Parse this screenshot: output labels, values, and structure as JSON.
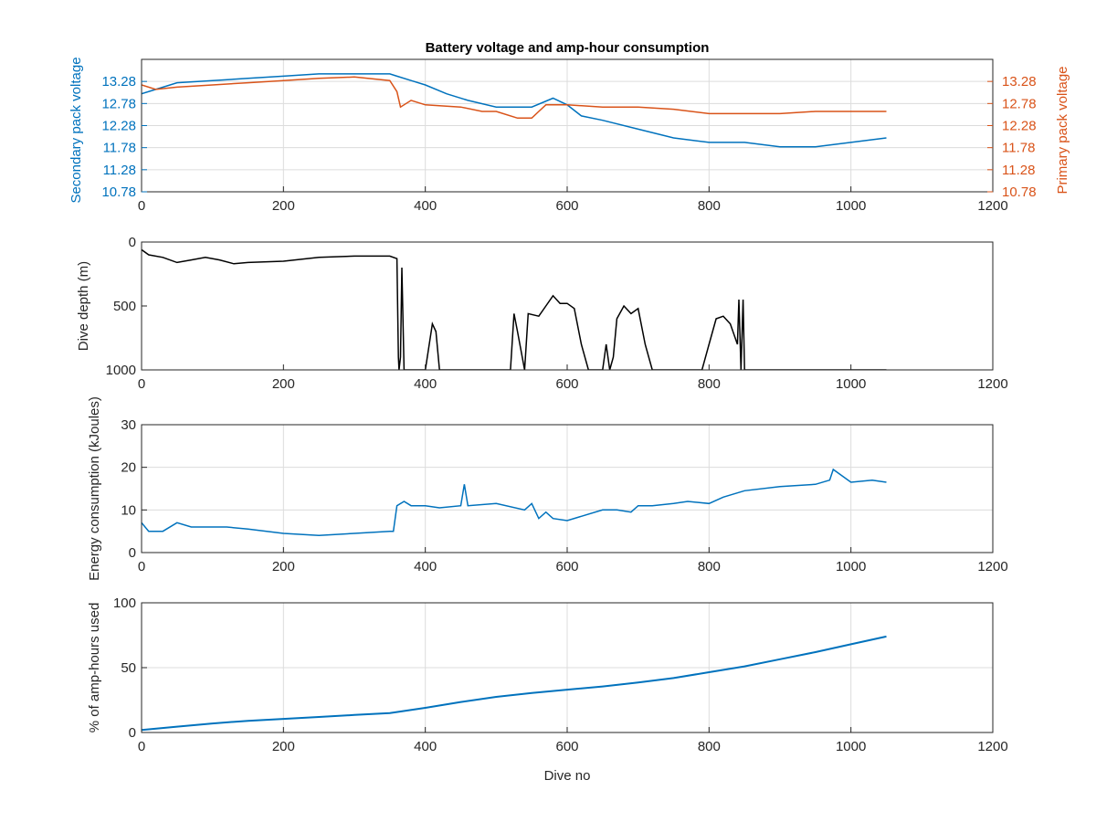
{
  "colors": {
    "secondary": "#0072BD",
    "primary": "#D95319",
    "depth": "#000000",
    "axis": "#262626",
    "grid": "#dcdcdc"
  },
  "chart_data": [
    {
      "type": "line",
      "title": "Battery voltage and amp-hour consumption",
      "xlabel": "",
      "xlim": [
        0,
        1200
      ],
      "xticks": [
        0,
        200,
        400,
        600,
        800,
        1000,
        1200
      ],
      "ylabel_left": "Secondary pack voltage",
      "ylabel_right": "Primary pack voltage",
      "ylim": [
        10.78,
        13.78
      ],
      "yticks": [
        10.78,
        11.28,
        11.78,
        12.28,
        12.78,
        13.28
      ],
      "grid": true,
      "series": [
        {
          "axis": "left",
          "x": [
            0,
            20,
            50,
            100,
            150,
            200,
            250,
            300,
            350,
            360,
            380,
            400,
            430,
            460,
            500,
            550,
            580,
            600,
            620,
            650,
            700,
            750,
            800,
            850,
            900,
            950,
            1000,
            1050
          ],
          "y": [
            13.0,
            13.1,
            13.25,
            13.3,
            13.35,
            13.4,
            13.45,
            13.45,
            13.45,
            13.4,
            13.3,
            13.2,
            13.0,
            12.85,
            12.7,
            12.7,
            12.9,
            12.75,
            12.5,
            12.4,
            12.2,
            12.0,
            11.9,
            11.9,
            11.8,
            11.8,
            11.9,
            12.0
          ]
        },
        {
          "axis": "right",
          "x": [
            0,
            20,
            50,
            100,
            150,
            200,
            250,
            300,
            350,
            360,
            365,
            380,
            400,
            450,
            480,
            500,
            530,
            550,
            560,
            570,
            600,
            650,
            700,
            750,
            800,
            850,
            900,
            950,
            1000,
            1050
          ],
          "y": [
            13.2,
            13.1,
            13.15,
            13.2,
            13.25,
            13.3,
            13.35,
            13.38,
            13.3,
            13.05,
            12.7,
            12.85,
            12.75,
            12.7,
            12.6,
            12.6,
            12.45,
            12.45,
            12.6,
            12.75,
            12.75,
            12.7,
            12.7,
            12.65,
            12.55,
            12.55,
            12.55,
            12.6,
            12.6,
            12.6
          ]
        }
      ]
    },
    {
      "type": "line",
      "xlabel": "",
      "ylabel": "Dive depth (m)",
      "xlim": [
        0,
        1200
      ],
      "xticks": [
        0,
        200,
        400,
        600,
        800,
        1000,
        1200
      ],
      "ylim": [
        0,
        1000
      ],
      "yticks": [
        0,
        500,
        1000
      ],
      "yreversed": true,
      "grid": false,
      "series": [
        {
          "x": [
            0,
            10,
            30,
            50,
            70,
            90,
            110,
            130,
            150,
            200,
            250,
            300,
            350,
            360,
            362,
            363,
            365,
            367,
            370,
            390,
            400,
            410,
            415,
            420,
            430,
            500,
            520,
            525,
            530,
            540,
            545,
            560,
            570,
            580,
            590,
            600,
            610,
            620,
            630,
            640,
            650,
            655,
            660,
            665,
            670,
            680,
            690,
            700,
            710,
            720,
            750,
            780,
            790,
            800,
            810,
            820,
            830,
            840,
            842,
            845,
            848,
            850,
            860,
            900,
            950,
            1000,
            1050
          ],
          "y": [
            60,
            100,
            120,
            160,
            140,
            120,
            140,
            170,
            160,
            150,
            120,
            110,
            110,
            130,
            900,
            1000,
            900,
            200,
            1000,
            1000,
            1000,
            640,
            700,
            1000,
            1000,
            1000,
            1000,
            560,
            700,
            1000,
            560,
            580,
            500,
            420,
            480,
            480,
            520,
            800,
            1000,
            1000,
            1000,
            800,
            1000,
            900,
            600,
            500,
            560,
            520,
            800,
            1000,
            1000,
            1000,
            1000,
            800,
            600,
            580,
            640,
            800,
            450,
            1000,
            450,
            1000,
            1000,
            1000,
            1000,
            1000,
            1000
          ]
        }
      ]
    },
    {
      "type": "line",
      "xlabel": "",
      "ylabel": "Energy consumption (kJoules)",
      "xlim": [
        0,
        1200
      ],
      "xticks": [
        0,
        200,
        400,
        600,
        800,
        1000,
        1200
      ],
      "ylim": [
        0,
        30
      ],
      "yticks": [
        0,
        10,
        20,
        30
      ],
      "grid": true,
      "series": [
        {
          "x": [
            0,
            10,
            30,
            50,
            70,
            100,
            120,
            150,
            200,
            250,
            300,
            350,
            355,
            360,
            370,
            380,
            400,
            420,
            450,
            455,
            460,
            500,
            540,
            550,
            560,
            570,
            580,
            600,
            620,
            650,
            670,
            690,
            700,
            720,
            750,
            770,
            800,
            820,
            850,
            900,
            950,
            970,
            975,
            1000,
            1030,
            1050
          ],
          "y": [
            7,
            5,
            5,
            7,
            6,
            6,
            6,
            5.5,
            4.5,
            4,
            4.5,
            5,
            5,
            11,
            12,
            11,
            11,
            10.5,
            11,
            16,
            11,
            11.5,
            10,
            11.5,
            8,
            9.5,
            8,
            7.5,
            8.5,
            10,
            10,
            9.5,
            11,
            11,
            11.5,
            12,
            11.5,
            13,
            14.5,
            15.5,
            16,
            17,
            19.5,
            16.5,
            17,
            16.5
          ]
        }
      ]
    },
    {
      "type": "line",
      "xlabel": "Dive no",
      "ylabel": "% of amp-hours used",
      "xlim": [
        0,
        1200
      ],
      "xticks": [
        0,
        200,
        400,
        600,
        800,
        1000,
        1200
      ],
      "ylim": [
        0,
        100
      ],
      "yticks": [
        0,
        50,
        100
      ],
      "grid": true,
      "series": [
        {
          "x": [
            0,
            50,
            100,
            150,
            200,
            250,
            300,
            350,
            400,
            450,
            500,
            550,
            600,
            650,
            700,
            750,
            800,
            850,
            900,
            950,
            1000,
            1050
          ],
          "y": [
            2,
            4.5,
            7,
            9,
            10.5,
            12,
            13.5,
            15,
            19,
            23.5,
            27.5,
            30.5,
            33,
            35.5,
            38.5,
            42,
            46.5,
            51,
            56.5,
            62,
            68,
            74
          ]
        }
      ]
    }
  ]
}
